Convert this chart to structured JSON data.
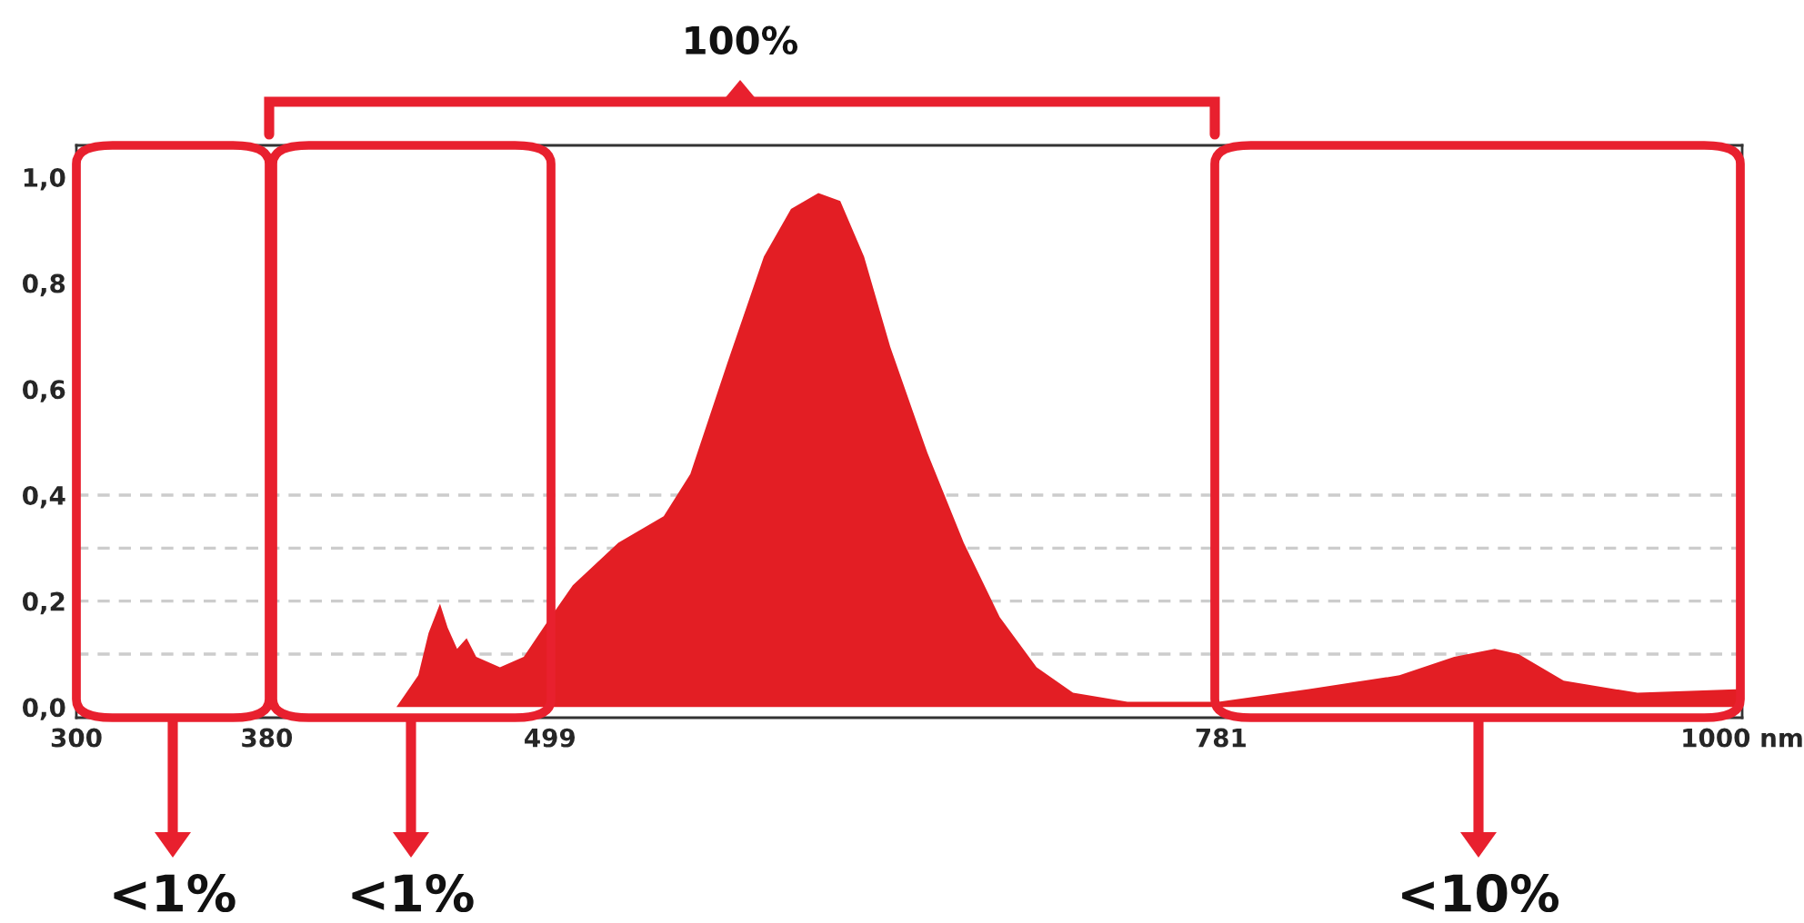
{
  "chart_data": {
    "type": "area",
    "relative": false,
    "x": [
      434.5,
      443.7,
      448,
      452.8,
      456,
      460,
      464,
      468,
      478,
      488,
      497,
      508.6,
      527.7,
      546.8,
      558,
      573.6,
      588.9,
      600.3,
      611.8,
      621,
      631,
      642,
      657.6,
      672.9,
      688,
      703.5,
      718.8,
      741.7,
      780,
      818,
      856,
      879,
      896,
      906,
      925,
      956,
      1000
    ],
    "series": [
      {
        "color": "#e31e24",
        "values": [
          0,
          0.06,
          0.14,
          0.195,
          0.15,
          0.11,
          0.13,
          0.095,
          0.075,
          0.095,
          0.155,
          0.23,
          0.31,
          0.36,
          0.44,
          0.65,
          0.85,
          0.94,
          0.97,
          0.955,
          0.85,
          0.68,
          0.48,
          0.31,
          0.17,
          0.075,
          0.027,
          0.01,
          0.01,
          0.034,
          0.06,
          0.095,
          0.11,
          0.1,
          0.05,
          0.027,
          0.034
        ]
      }
    ],
    "xlim": [
      300,
      1000
    ],
    "ylim": [
      -0.02,
      1.06
    ],
    "xticks": [
      300,
      380,
      499,
      781,
      {
        "value": 1000,
        "label": "1000 nm"
      }
    ],
    "yticks": [
      {
        "value": 0,
        "label": "0,0"
      },
      {
        "value": 0.2,
        "label": "0,2"
      },
      {
        "value": 0.4,
        "label": "0,4"
      },
      {
        "value": 0.6,
        "label": "0,6"
      },
      {
        "value": 0.8,
        "label": "0,8"
      },
      {
        "value": 1.0,
        "label": "1,0"
      }
    ],
    "ref_lines": [
      {
        "axis": "y",
        "value": 0.1,
        "color": "#cccccc",
        "line_style": "dashed"
      },
      {
        "axis": "y",
        "value": 0.2,
        "color": "#cccccc",
        "line_style": "dashed"
      },
      {
        "axis": "y",
        "value": 0.3,
        "color": "#cccccc",
        "line_style": "dashed"
      },
      {
        "axis": "y",
        "value": 0.4,
        "color": "#cccccc",
        "line_style": "dashed"
      }
    ],
    "grid": false,
    "legend": false,
    "annotations": [
      "100%",
      "<1%",
      "<1%",
      "<10%"
    ]
  }
}
